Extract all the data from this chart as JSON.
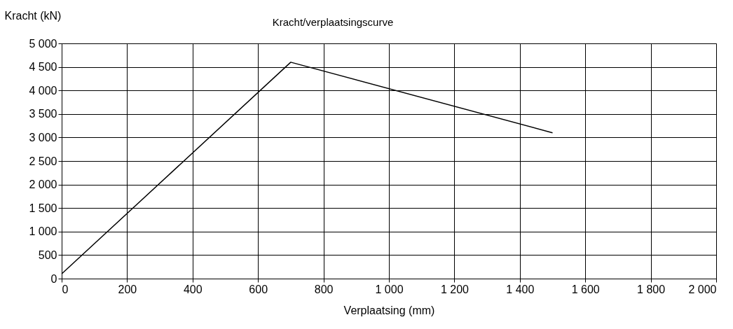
{
  "chart_data": {
    "type": "line",
    "title": "Kracht/verplaatsingscurve",
    "xlabel": "Verplaatsing (mm)",
    "ylabel": "Kracht (kN)",
    "x": [
      0,
      700,
      1500
    ],
    "series": [
      {
        "color": "#000000",
        "values": [
          100,
          4600,
          3100
        ]
      }
    ],
    "xlim": [
      0,
      2000
    ],
    "ylim": [
      0,
      5000
    ],
    "xticks": [
      0,
      200,
      400,
      600,
      800,
      {
        "value": 1000,
        "label": "1 000"
      },
      {
        "value": 1200,
        "label": "1 200"
      },
      {
        "value": 1400,
        "label": "1 400"
      },
      {
        "value": 1600,
        "label": "1 600"
      },
      {
        "value": 1800,
        "label": "1 800"
      },
      {
        "value": 2000,
        "label": "2 000"
      }
    ],
    "yticks": [
      0,
      500,
      {
        "value": 1000,
        "label": "1 000"
      },
      {
        "value": 1500,
        "label": "1 500"
      },
      {
        "value": 2000,
        "label": "2 000"
      },
      {
        "value": 2500,
        "label": "2 500"
      },
      {
        "value": 3000,
        "label": "3 000"
      },
      {
        "value": 3500,
        "label": "3 500"
      },
      {
        "value": 4000,
        "label": "4 000"
      },
      {
        "value": 4500,
        "label": "4 500"
      },
      {
        "value": 5000,
        "label": "5 000"
      }
    ],
    "grid": true,
    "marker": "none",
    "line_style": "solid"
  }
}
